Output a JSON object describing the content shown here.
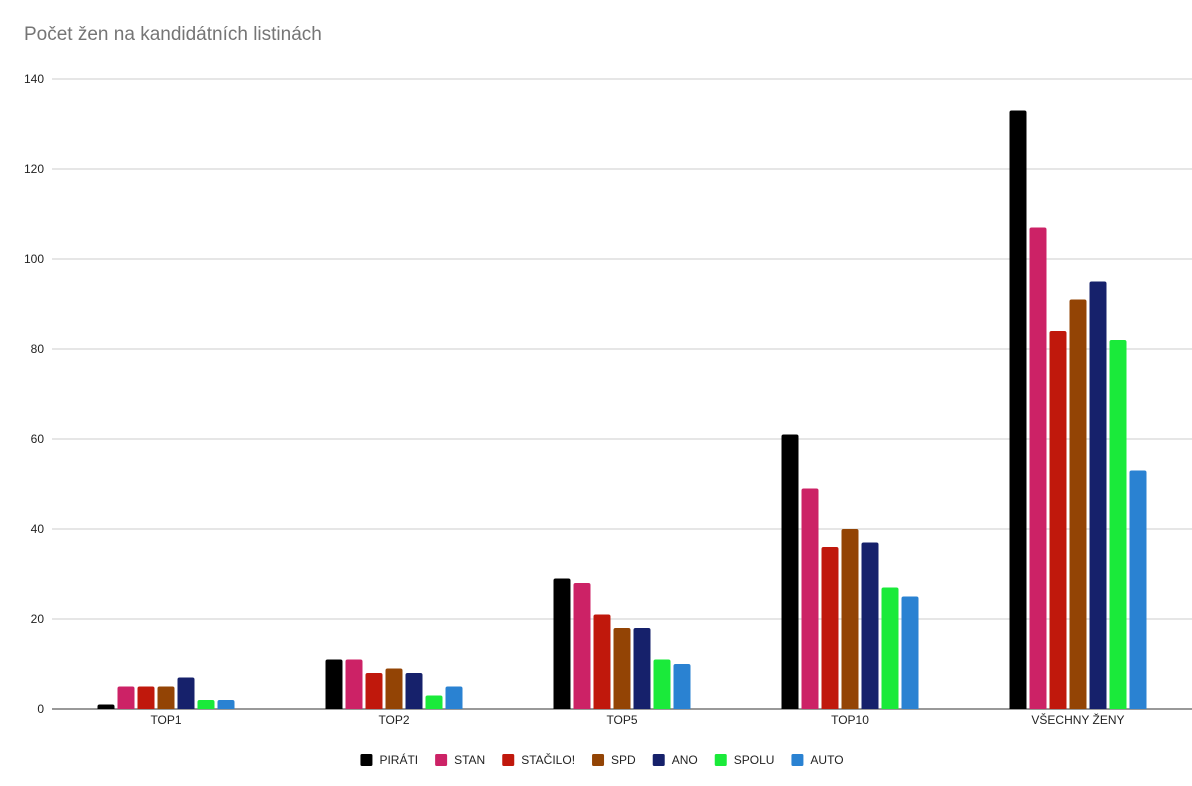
{
  "chart_data": {
    "type": "bar",
    "title": "Počet žen na kandidátních listinách",
    "xlabel": "",
    "ylabel": "",
    "ylim": [
      0,
      140
    ],
    "yticks": [
      0,
      20,
      40,
      60,
      80,
      100,
      120,
      140
    ],
    "grid": true,
    "legend_position": "bottom",
    "categories": [
      "TOP1",
      "TOP2",
      "TOP5",
      "TOP10",
      "VŠECHNY ŽENY"
    ],
    "series": [
      {
        "name": "PIRÁTI",
        "color": "#000000",
        "values": [
          1,
          11,
          29,
          61,
          133
        ]
      },
      {
        "name": "STAN",
        "color": "#cc2266",
        "values": [
          5,
          11,
          28,
          49,
          107
        ]
      },
      {
        "name": "STAČILO!",
        "color": "#c0180c",
        "values": [
          5,
          8,
          21,
          36,
          84
        ]
      },
      {
        "name": "SPD",
        "color": "#934405",
        "values": [
          5,
          9,
          18,
          40,
          91
        ]
      },
      {
        "name": "ANO",
        "color": "#16216b",
        "values": [
          7,
          8,
          18,
          37,
          95
        ]
      },
      {
        "name": "SPOLU",
        "color": "#1aea3a",
        "values": [
          2,
          3,
          11,
          27,
          82
        ]
      },
      {
        "name": "AUTO",
        "color": "#2a82d2",
        "values": [
          2,
          5,
          10,
          25,
          53
        ]
      }
    ]
  }
}
